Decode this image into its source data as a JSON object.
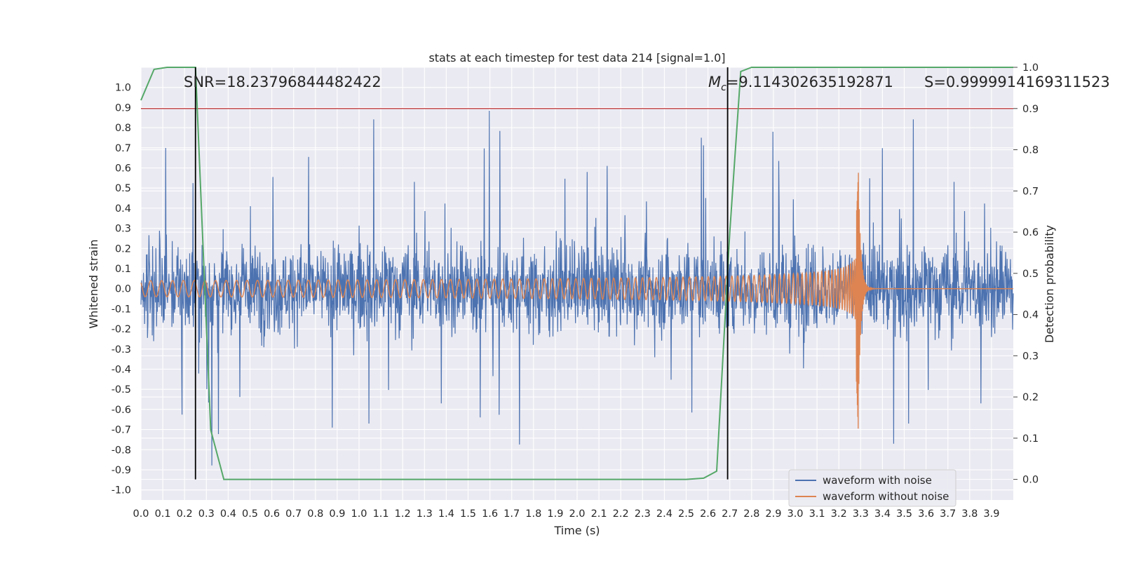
{
  "chart_data": {
    "type": "line",
    "title": "stats at each timestep for test data 214 [signal=1.0]",
    "xlabel": "Time (s)",
    "ylabel": "Whitened strain",
    "y2label": "Detection probability",
    "xlim": [
      0.0,
      4.0
    ],
    "ylim": [
      -1.05,
      1.1
    ],
    "y2lim": [
      -0.05,
      1.0
    ],
    "xticks": [
      "0.0",
      "0.1",
      "0.2",
      "0.3",
      "0.4",
      "0.5",
      "0.6",
      "0.7",
      "0.8",
      "0.9",
      "1.0",
      "1.1",
      "1.2",
      "1.3",
      "1.4",
      "1.5",
      "1.6",
      "1.7",
      "1.8",
      "1.9",
      "2.0",
      "2.1",
      "2.2",
      "2.3",
      "2.4",
      "2.5",
      "2.6",
      "2.7",
      "2.8",
      "2.9",
      "3.0",
      "3.1",
      "3.2",
      "3.3",
      "3.4",
      "3.5",
      "3.6",
      "3.7",
      "3.8",
      "3.9"
    ],
    "yticks": [
      "-1.0",
      "-0.9",
      "-0.8",
      "-0.7",
      "-0.6",
      "-0.5",
      "-0.4",
      "-0.3",
      "-0.2",
      "-0.1",
      "0.0",
      "0.1",
      "0.2",
      "0.3",
      "0.4",
      "0.5",
      "0.6",
      "0.7",
      "0.8",
      "0.9",
      "1.0"
    ],
    "y2ticks": [
      "0.0",
      "0.1",
      "0.2",
      "0.3",
      "0.4",
      "0.5",
      "0.6",
      "0.7",
      "0.8",
      "0.9",
      "1.0"
    ],
    "grid": true,
    "legend_position": "lower-right",
    "series": [
      {
        "name": "waveform with noise",
        "axis": "left",
        "color": "#4c72b0",
        "description": "noisy whitened strain, amplitude roughly -0.9 to 0.9 across 0.0-4.0 s"
      },
      {
        "name": "waveform without noise",
        "axis": "left",
        "color": "#dd8452",
        "description": "chirp: amplitude ~0.04 at start growing to peak ~0.58 / -0.73 at merger near 3.29 s, then ringdown to 0",
        "merger_time": 3.29,
        "peak_max": 0.58,
        "peak_min": -0.73
      },
      {
        "name": "detection probability",
        "axis": "right",
        "color": "#55a868",
        "x": [
          0.0,
          0.06,
          0.12,
          0.25,
          0.32,
          0.38,
          2.5,
          2.58,
          2.64,
          2.7,
          2.75,
          2.8,
          4.0
        ],
        "values": [
          0.92,
          0.995,
          1.0,
          1.0,
          0.12,
          0.0,
          0.0,
          0.003,
          0.02,
          0.6,
          0.99,
          1.0,
          1.0
        ]
      }
    ],
    "threshold": {
      "value": 0.9,
      "axis": "right",
      "color": "#c44e52"
    },
    "vlines": [
      0.25,
      2.69
    ],
    "annotations": {
      "snr": "SNR=18.23796844482422",
      "mc_symbol": "M",
      "mc_subscript": "c",
      "mc_value": "=9.114302635192871",
      "s": "S=0.9999914169311523"
    }
  }
}
